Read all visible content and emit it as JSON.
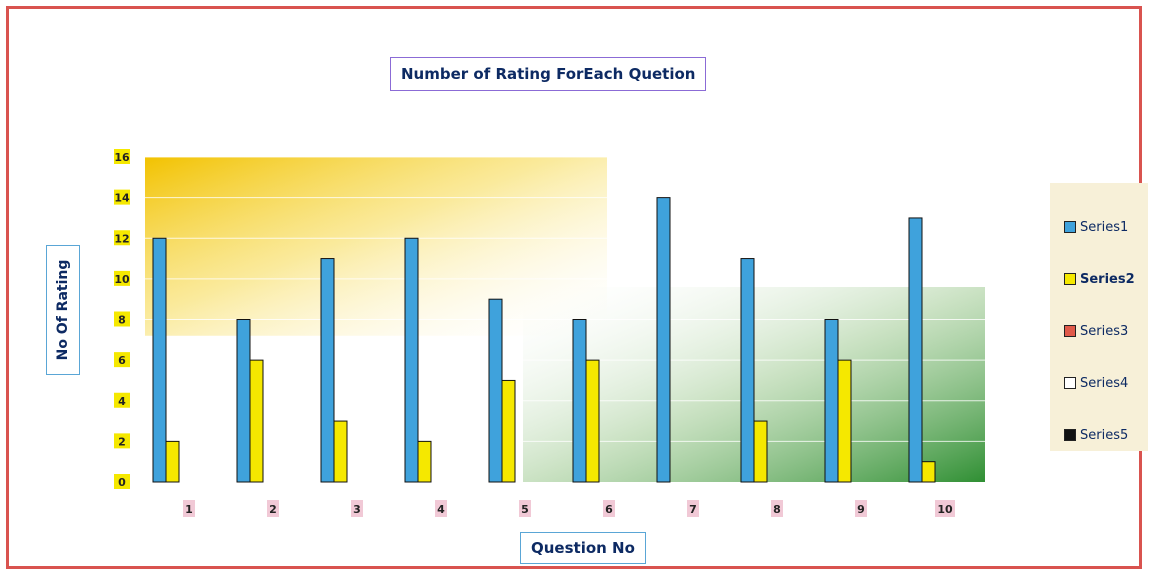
{
  "chart_data": {
    "type": "bar",
    "title": "Number of Rating ForEach Quetion",
    "xlabel": "Question No",
    "ylabel": "No Of Rating",
    "categories": [
      "1",
      "2",
      "3",
      "4",
      "5",
      "6",
      "7",
      "8",
      "9",
      "10"
    ],
    "ylim": [
      0,
      16
    ],
    "yticks": [
      "0",
      "2",
      "4",
      "6",
      "8",
      "10",
      "12",
      "14",
      "16"
    ],
    "series": [
      {
        "name": "Series1",
        "color": "#3fa2dc",
        "values": [
          12,
          8,
          11,
          12,
          9,
          8,
          14,
          11,
          8,
          13
        ]
      },
      {
        "name": "Series2",
        "color": "#f5e800",
        "values": [
          2,
          6,
          3,
          2,
          5,
          6,
          0,
          3,
          6,
          1
        ]
      }
    ],
    "legend": [
      {
        "name": "Series1",
        "color": "#3fa2dc"
      },
      {
        "name": "Series2",
        "color": "#f5e800"
      },
      {
        "name": "Series3",
        "color": "#e05a4a"
      },
      {
        "name": "Series4",
        "color": "#ffffff"
      },
      {
        "name": "Series5",
        "color": "#111111"
      }
    ],
    "legend_position": "right",
    "grid": true
  }
}
